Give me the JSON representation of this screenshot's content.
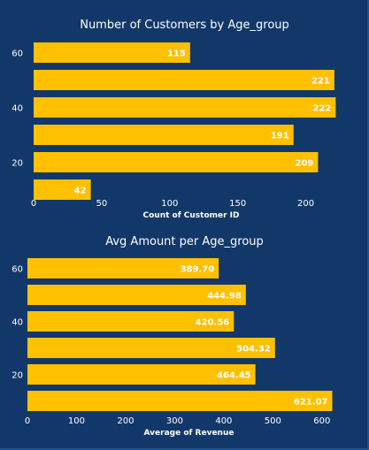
{
  "colors": {
    "background": "#12386a",
    "bar": "#ffc000",
    "text": "#ffffff"
  },
  "chart_data": [
    {
      "type": "bar",
      "orientation": "horizontal",
      "title": "Number of Customers by Age_group",
      "xlabel": "Count of Customer ID",
      "ylabel": "",
      "categories": [
        "60",
        "",
        "40",
        "",
        "20",
        ""
      ],
      "values": [
        115,
        221,
        222,
        191,
        209,
        42
      ],
      "data_labels": [
        "115",
        "221",
        "222",
        "191",
        "209",
        "42"
      ],
      "x_ticks": [
        0,
        50,
        100,
        150,
        200
      ],
      "y_tick_labels": [
        "60",
        "40",
        "20"
      ],
      "xlim": [
        0,
        225
      ],
      "grid": false,
      "legend": "none"
    },
    {
      "type": "bar",
      "orientation": "horizontal",
      "title": "Avg Amount per Age_group",
      "xlabel": "Average of Revenue",
      "ylabel": "",
      "categories": [
        "60",
        "",
        "40",
        "",
        "20",
        ""
      ],
      "values": [
        389.7,
        444.98,
        420.56,
        504.32,
        464.45,
        621.07
      ],
      "data_labels": [
        "389.70",
        "444.98",
        "420.56",
        "504.32",
        "464.45",
        "621.07"
      ],
      "x_ticks": [
        0,
        100,
        200,
        300,
        400,
        500,
        600
      ],
      "y_tick_labels": [
        "60",
        "40",
        "20"
      ],
      "xlim": [
        0,
        640
      ],
      "grid": false,
      "legend": "none"
    }
  ]
}
